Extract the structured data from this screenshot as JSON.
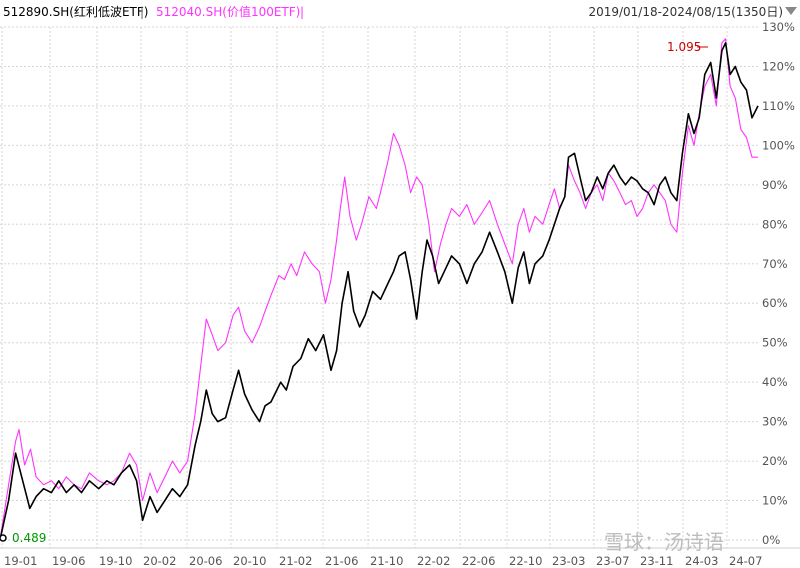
{
  "header": {
    "series_a_label": "512890.SH(红利低波ETF)",
    "separator": "|",
    "series_b_label": "512040.SH(价值100ETF)",
    "separator_end": "|",
    "date_range": "2019/01/18-2024/08/15(1350日)"
  },
  "watermark": "雪球：汤诗语",
  "colors": {
    "series_a": "#000000",
    "series_b": "#ff33ff",
    "max_label": "#cc0000",
    "min_label": "#009900"
  },
  "chart_data": {
    "type": "line",
    "title": "",
    "xlabel": "",
    "ylabel": "",
    "x_ticks": [
      "19-01",
      "19-06",
      "19-10",
      "20-02",
      "20-06",
      "20-10",
      "21-02",
      "21-06",
      "21-10",
      "22-02",
      "22-06",
      "22-10",
      "23-03",
      "23-07",
      "23-11",
      "24-03",
      "24-07"
    ],
    "y_ticks": [
      "0%",
      "10%",
      "20%",
      "30%",
      "40%",
      "50%",
      "60%",
      "70%",
      "80%",
      "90%",
      "100%",
      "110%",
      "120%",
      "130%"
    ],
    "ylim": [
      0,
      130
    ],
    "y_unit": "%",
    "grid": true,
    "annotations": {
      "max_value": "1.095",
      "min_value": "0.489"
    },
    "series": [
      {
        "key": "512890",
        "color": "#000000",
        "points": [
          [
            "2019-01-18",
            0
          ],
          [
            "2019-02-10",
            10
          ],
          [
            "2019-03-01",
            22
          ],
          [
            "2019-03-20",
            15
          ],
          [
            "2019-04-08",
            8
          ],
          [
            "2019-04-25",
            11
          ],
          [
            "2019-05-15",
            13
          ],
          [
            "2019-06-05",
            12
          ],
          [
            "2019-06-25",
            15
          ],
          [
            "2019-07-15",
            12
          ],
          [
            "2019-08-05",
            14
          ],
          [
            "2019-08-25",
            12
          ],
          [
            "2019-09-15",
            15
          ],
          [
            "2019-10-10",
            13
          ],
          [
            "2019-11-01",
            15
          ],
          [
            "2019-11-20",
            14
          ],
          [
            "2019-12-10",
            17
          ],
          [
            "2020-01-01",
            19
          ],
          [
            "2020-01-20",
            15
          ],
          [
            "2020-02-05",
            5
          ],
          [
            "2020-02-25",
            11
          ],
          [
            "2020-03-15",
            7
          ],
          [
            "2020-04-05",
            10
          ],
          [
            "2020-04-25",
            13
          ],
          [
            "2020-05-15",
            11
          ],
          [
            "2020-06-05",
            14
          ],
          [
            "2020-06-25",
            24
          ],
          [
            "2020-07-10",
            30
          ],
          [
            "2020-07-25",
            38
          ],
          [
            "2020-08-10",
            32
          ],
          [
            "2020-08-25",
            30
          ],
          [
            "2020-09-15",
            31
          ],
          [
            "2020-10-05",
            38
          ],
          [
            "2020-10-20",
            43
          ],
          [
            "2020-11-05",
            37
          ],
          [
            "2020-11-25",
            33
          ],
          [
            "2020-12-15",
            30
          ],
          [
            "2020-12-30",
            34
          ],
          [
            "2021-01-15",
            35
          ],
          [
            "2021-02-10",
            40
          ],
          [
            "2021-02-25",
            38
          ],
          [
            "2021-03-15",
            44
          ],
          [
            "2021-04-05",
            46
          ],
          [
            "2021-04-25",
            51
          ],
          [
            "2021-05-15",
            48
          ],
          [
            "2021-06-05",
            52
          ],
          [
            "2021-06-25",
            43
          ],
          [
            "2021-07-10",
            48
          ],
          [
            "2021-07-25",
            60
          ],
          [
            "2021-08-10",
            68
          ],
          [
            "2021-08-25",
            58
          ],
          [
            "2021-09-10",
            54
          ],
          [
            "2021-09-25",
            57
          ],
          [
            "2021-10-15",
            63
          ],
          [
            "2021-11-05",
            61
          ],
          [
            "2021-11-25",
            65
          ],
          [
            "2021-12-10",
            68
          ],
          [
            "2021-12-25",
            72
          ],
          [
            "2022-01-10",
            73
          ],
          [
            "2022-01-25",
            66
          ],
          [
            "2022-02-10",
            56
          ],
          [
            "2022-02-25",
            68
          ],
          [
            "2022-03-10",
            76
          ],
          [
            "2022-03-25",
            72
          ],
          [
            "2022-04-10",
            65
          ],
          [
            "2022-04-25",
            68
          ],
          [
            "2022-05-15",
            72
          ],
          [
            "2022-06-05",
            70
          ],
          [
            "2022-06-25",
            65
          ],
          [
            "2022-07-15",
            70
          ],
          [
            "2022-08-05",
            73
          ],
          [
            "2022-08-25",
            78
          ],
          [
            "2022-09-15",
            73
          ],
          [
            "2022-10-05",
            68
          ],
          [
            "2022-10-25",
            60
          ],
          [
            "2022-11-10",
            69
          ],
          [
            "2022-11-25",
            73
          ],
          [
            "2022-12-10",
            65
          ],
          [
            "2022-12-25",
            70
          ],
          [
            "2023-01-15",
            72
          ],
          [
            "2023-02-01",
            76
          ],
          [
            "2023-02-15",
            80
          ],
          [
            "2023-03-01",
            84
          ],
          [
            "2023-03-15",
            87
          ],
          [
            "2023-03-25",
            97
          ],
          [
            "2023-04-10",
            98
          ],
          [
            "2023-04-25",
            92
          ],
          [
            "2023-05-10",
            86
          ],
          [
            "2023-05-25",
            88
          ],
          [
            "2023-06-10",
            92
          ],
          [
            "2023-06-25",
            89
          ],
          [
            "2023-07-10",
            93
          ],
          [
            "2023-07-25",
            95
          ],
          [
            "2023-08-10",
            92
          ],
          [
            "2023-08-25",
            90
          ],
          [
            "2023-09-10",
            92
          ],
          [
            "2023-09-25",
            91
          ],
          [
            "2023-10-10",
            89
          ],
          [
            "2023-10-25",
            88
          ],
          [
            "2023-11-10",
            85
          ],
          [
            "2023-11-25",
            90
          ],
          [
            "2023-12-10",
            92
          ],
          [
            "2023-12-25",
            88
          ],
          [
            "2024-01-10",
            86
          ],
          [
            "2024-01-25",
            98
          ],
          [
            "2024-02-10",
            108
          ],
          [
            "2024-02-25",
            103
          ],
          [
            "2024-03-10",
            107
          ],
          [
            "2024-03-25",
            118
          ],
          [
            "2024-04-10",
            121
          ],
          [
            "2024-04-25",
            112
          ],
          [
            "2024-05-10",
            124
          ],
          [
            "2024-05-20",
            126
          ],
          [
            "2024-06-01",
            118
          ],
          [
            "2024-06-15",
            120
          ],
          [
            "2024-06-30",
            116
          ],
          [
            "2024-07-15",
            114
          ],
          [
            "2024-07-30",
            107
          ],
          [
            "2024-08-15",
            110
          ]
        ]
      },
      {
        "key": "512040",
        "color": "#ff33ff",
        "points": [
          [
            "2019-01-18",
            0
          ],
          [
            "2019-02-10",
            14
          ],
          [
            "2019-03-01",
            25
          ],
          [
            "2019-03-10",
            28
          ],
          [
            "2019-03-25",
            19
          ],
          [
            "2019-04-10",
            23
          ],
          [
            "2019-04-25",
            16
          ],
          [
            "2019-05-15",
            14
          ],
          [
            "2019-06-05",
            15
          ],
          [
            "2019-06-25",
            13
          ],
          [
            "2019-07-15",
            16
          ],
          [
            "2019-08-05",
            14
          ],
          [
            "2019-08-25",
            13
          ],
          [
            "2019-09-15",
            17
          ],
          [
            "2019-10-10",
            15
          ],
          [
            "2019-11-01",
            14
          ],
          [
            "2019-11-20",
            15
          ],
          [
            "2019-12-10",
            17
          ],
          [
            "2020-01-01",
            22
          ],
          [
            "2020-01-20",
            19
          ],
          [
            "2020-02-05",
            10
          ],
          [
            "2020-02-25",
            17
          ],
          [
            "2020-03-15",
            12
          ],
          [
            "2020-04-05",
            16
          ],
          [
            "2020-04-25",
            20
          ],
          [
            "2020-05-15",
            17
          ],
          [
            "2020-06-05",
            20
          ],
          [
            "2020-06-25",
            32
          ],
          [
            "2020-07-05",
            40
          ],
          [
            "2020-07-15",
            48
          ],
          [
            "2020-07-25",
            56
          ],
          [
            "2020-08-10",
            52
          ],
          [
            "2020-08-25",
            48
          ],
          [
            "2020-09-15",
            50
          ],
          [
            "2020-10-05",
            57
          ],
          [
            "2020-10-20",
            59
          ],
          [
            "2020-11-05",
            53
          ],
          [
            "2020-11-25",
            50
          ],
          [
            "2020-12-15",
            54
          ],
          [
            "2020-12-30",
            58
          ],
          [
            "2021-01-15",
            62
          ],
          [
            "2021-02-05",
            67
          ],
          [
            "2021-02-20",
            66
          ],
          [
            "2021-03-10",
            70
          ],
          [
            "2021-03-25",
            67
          ],
          [
            "2021-04-15",
            73
          ],
          [
            "2021-05-05",
            70
          ],
          [
            "2021-05-25",
            68
          ],
          [
            "2021-06-10",
            60
          ],
          [
            "2021-06-25",
            66
          ],
          [
            "2021-07-10",
            76
          ],
          [
            "2021-07-20",
            84
          ],
          [
            "2021-08-01",
            92
          ],
          [
            "2021-08-15",
            82
          ],
          [
            "2021-09-01",
            76
          ],
          [
            "2021-09-15",
            80
          ],
          [
            "2021-10-05",
            87
          ],
          [
            "2021-10-25",
            84
          ],
          [
            "2021-11-10",
            90
          ],
          [
            "2021-11-25",
            96
          ],
          [
            "2021-12-10",
            103
          ],
          [
            "2021-12-25",
            100
          ],
          [
            "2022-01-10",
            95
          ],
          [
            "2022-01-25",
            88
          ],
          [
            "2022-02-10",
            92
          ],
          [
            "2022-02-25",
            90
          ],
          [
            "2022-03-15",
            80
          ],
          [
            "2022-03-30",
            68
          ],
          [
            "2022-04-15",
            75
          ],
          [
            "2022-04-30",
            80
          ],
          [
            "2022-05-15",
            84
          ],
          [
            "2022-06-05",
            82
          ],
          [
            "2022-06-25",
            85
          ],
          [
            "2022-07-15",
            80
          ],
          [
            "2022-08-05",
            83
          ],
          [
            "2022-08-25",
            86
          ],
          [
            "2022-09-15",
            80
          ],
          [
            "2022-10-05",
            75
          ],
          [
            "2022-10-25",
            70
          ],
          [
            "2022-11-10",
            80
          ],
          [
            "2022-11-25",
            84
          ],
          [
            "2022-12-10",
            78
          ],
          [
            "2022-12-25",
            82
          ],
          [
            "2023-01-15",
            80
          ],
          [
            "2023-02-01",
            85
          ],
          [
            "2023-02-15",
            89
          ],
          [
            "2023-03-01",
            84
          ],
          [
            "2023-03-15",
            87
          ],
          [
            "2023-03-25",
            95
          ],
          [
            "2023-04-10",
            91
          ],
          [
            "2023-04-25",
            88
          ],
          [
            "2023-05-10",
            84
          ],
          [
            "2023-05-25",
            88
          ],
          [
            "2023-06-10",
            90
          ],
          [
            "2023-06-25",
            86
          ],
          [
            "2023-07-10",
            93
          ],
          [
            "2023-07-25",
            91
          ],
          [
            "2023-08-10",
            88
          ],
          [
            "2023-08-25",
            85
          ],
          [
            "2023-09-10",
            86
          ],
          [
            "2023-09-25",
            82
          ],
          [
            "2023-10-10",
            84
          ],
          [
            "2023-10-25",
            88
          ],
          [
            "2023-11-10",
            90
          ],
          [
            "2023-11-25",
            88
          ],
          [
            "2023-12-10",
            86
          ],
          [
            "2023-12-25",
            80
          ],
          [
            "2024-01-10",
            78
          ],
          [
            "2024-01-25",
            93
          ],
          [
            "2024-02-10",
            105
          ],
          [
            "2024-02-25",
            100
          ],
          [
            "2024-03-10",
            108
          ],
          [
            "2024-03-25",
            115
          ],
          [
            "2024-04-10",
            118
          ],
          [
            "2024-04-25",
            110
          ],
          [
            "2024-05-10",
            126
          ],
          [
            "2024-05-20",
            127
          ],
          [
            "2024-06-01",
            115
          ],
          [
            "2024-06-15",
            112
          ],
          [
            "2024-06-30",
            104
          ],
          [
            "2024-07-15",
            102
          ],
          [
            "2024-07-30",
            97
          ],
          [
            "2024-08-15",
            97
          ]
        ]
      }
    ]
  }
}
